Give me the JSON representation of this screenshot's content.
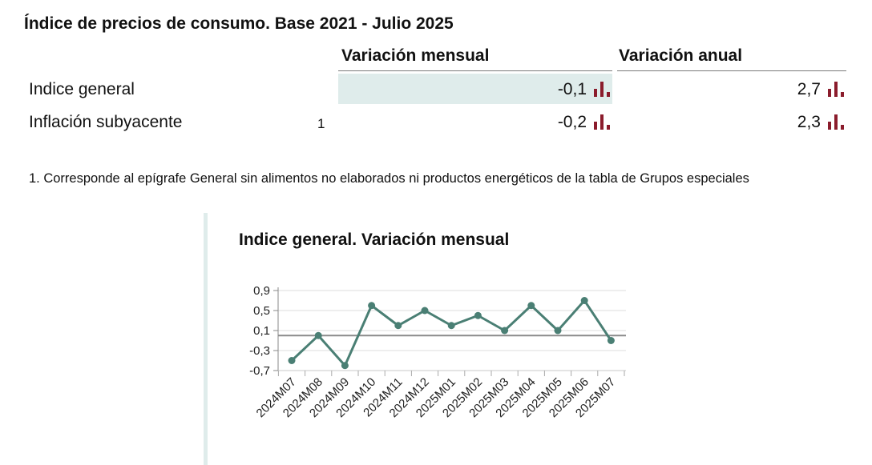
{
  "table": {
    "title": "Índice de precios de consumo. Base 2021 - Julio 2025",
    "col_monthly": "Variación mensual",
    "col_annual": "Variación anual",
    "rows": [
      {
        "label": "Indice general",
        "note": "",
        "monthly": "-0,1",
        "annual": "2,7",
        "chart_icon": "bar-chart-icon"
      },
      {
        "label": "Inflación subyacente",
        "note": "1",
        "monthly": "-0,2",
        "annual": "2,3",
        "chart_icon": "bar-chart-icon"
      }
    ],
    "footnote": "1. Corresponde al epígrafe General sin alimentos no elaborados ni productos energéticos de la tabla de Grupos especiales"
  },
  "colors": {
    "line": "#4a7f74",
    "highlight": "#dfeceb",
    "icon": "#8b1c2c",
    "zero_line": "#8a8a8a"
  },
  "chart_data": {
    "type": "line",
    "title": "Indice general. Variación mensual",
    "categories": [
      "2024M07",
      "2024M08",
      "2024M09",
      "2024M10",
      "2024M11",
      "2024M12",
      "2025M01",
      "2025M02",
      "2025M03",
      "2025M04",
      "2025M05",
      "2025M06",
      "2025M07"
    ],
    "series": [
      {
        "values": [
          -0.5,
          0.0,
          -0.6,
          0.6,
          0.2,
          0.5,
          0.2,
          0.4,
          0.1,
          0.6,
          0.1,
          0.7,
          -0.1
        ]
      }
    ],
    "yticks": [
      "0,9",
      "0,5",
      "0,1",
      "-0,3",
      "-0,7"
    ],
    "ytick_values": [
      0.9,
      0.5,
      0.1,
      -0.3,
      -0.7
    ],
    "ylim": [
      -0.7,
      0.9
    ],
    "reference_line": 0,
    "grid": true
  }
}
